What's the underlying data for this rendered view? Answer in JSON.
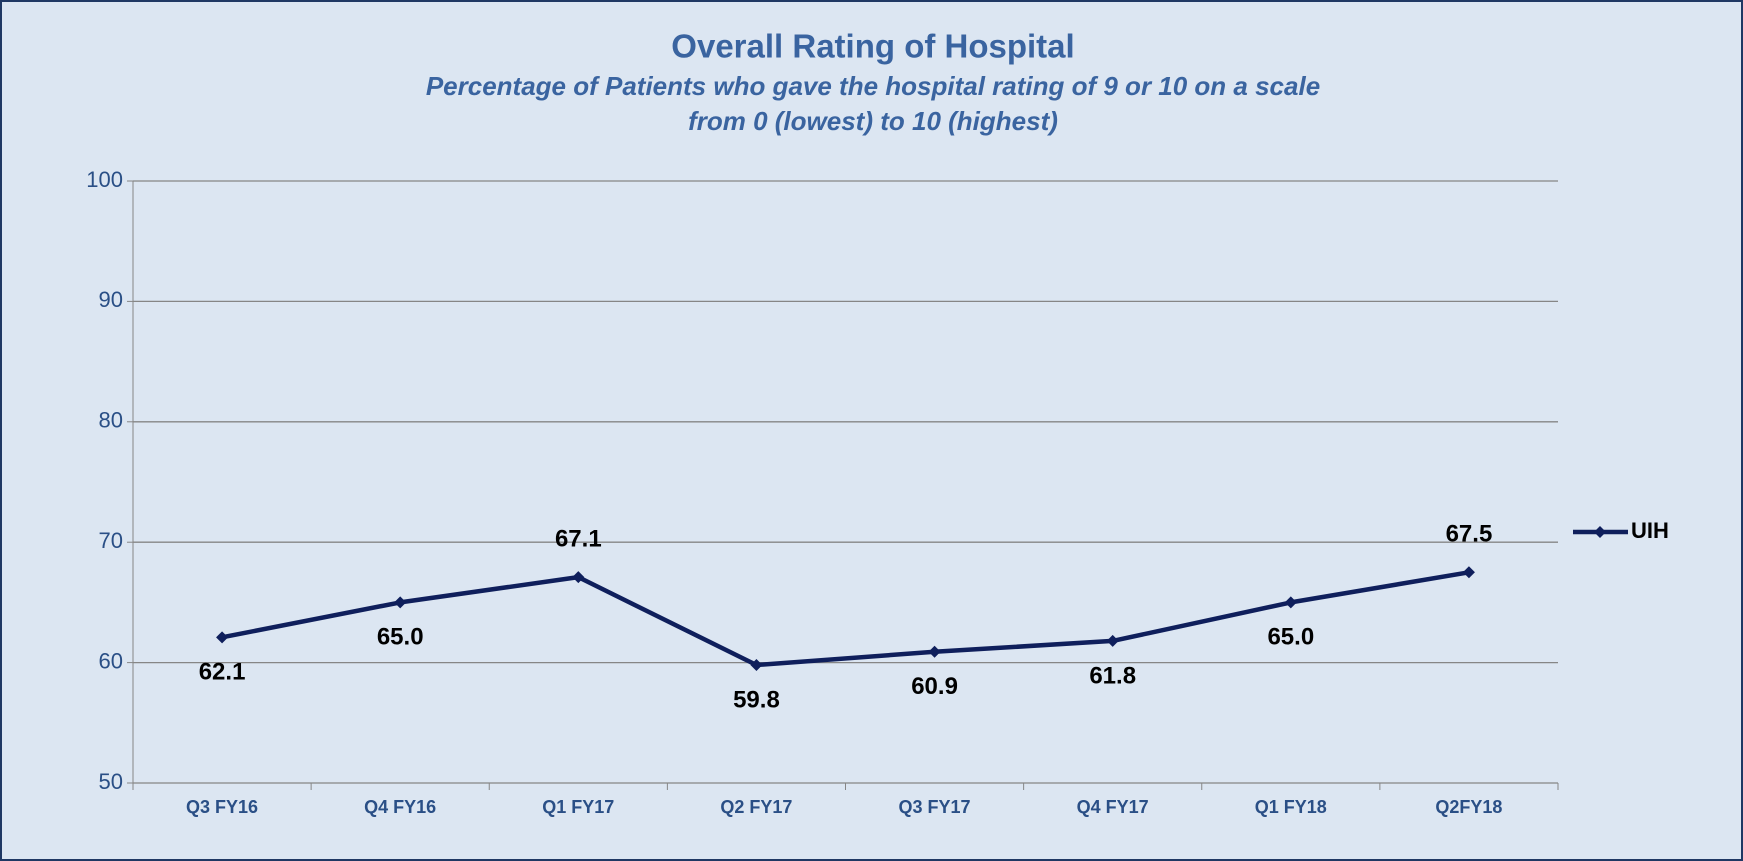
{
  "chart_data": {
    "type": "line",
    "title": "Overall Rating of Hospital",
    "subtitle": [
      "Percentage of Patients who gave the hospital rating of 9 or 10 on a scale",
      "from 0 (lowest) to 10 (highest)"
    ],
    "categories": [
      "Q3 FY16",
      "Q4 FY16",
      "Q1 FY17",
      "Q2 FY17",
      "Q3 FY17",
      "Q4 FY17",
      "Q1 FY18",
      "Q2FY18"
    ],
    "series": [
      {
        "name": "UIH",
        "color": "#0f1f5c",
        "values": [
          62.1,
          65,
          67.1,
          59.8,
          60.9,
          61.8,
          65,
          67.5
        ],
        "value_labels": [
          "62.1",
          "65.0",
          "67.1",
          "59.8",
          "60.9",
          "61.8",
          "65.0",
          "67.5"
        ]
      }
    ],
    "ylim": [
      50,
      100
    ],
    "yticks": [
      50,
      60,
      70,
      80,
      90,
      100
    ],
    "grid": true,
    "legend": "right"
  }
}
